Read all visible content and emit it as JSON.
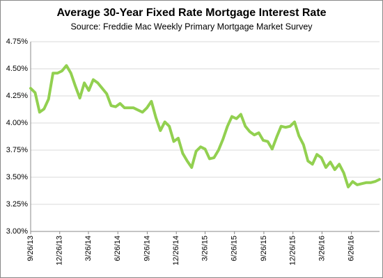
{
  "chart_data": {
    "type": "line",
    "title": "Average 30-Year Fixed Rate Mortgage Interest Rate",
    "subtitle": "Source: Freddie Mac Weekly Primary Mortgage Market Survey",
    "x": [
      "9/26/13",
      "10/10/13",
      "10/24/13",
      "11/7/13",
      "11/21/13",
      "12/5/13",
      "12/19/13",
      "1/2/14",
      "1/16/14",
      "1/30/14",
      "2/13/14",
      "2/27/14",
      "3/13/14",
      "3/27/14",
      "4/10/14",
      "4/24/14",
      "5/8/14",
      "5/22/14",
      "6/5/14",
      "6/19/14",
      "7/3/14",
      "7/17/14",
      "7/31/14",
      "8/14/14",
      "8/28/14",
      "9/11/14",
      "9/25/14",
      "10/9/14",
      "10/23/14",
      "11/6/14",
      "11/20/14",
      "12/4/14",
      "12/18/14",
      "1/1/15",
      "1/15/15",
      "1/29/15",
      "2/12/15",
      "2/26/15",
      "3/12/15",
      "3/26/15",
      "4/9/15",
      "4/23/15",
      "5/7/15",
      "5/21/15",
      "6/4/15",
      "6/18/15",
      "7/2/15",
      "7/16/15",
      "7/30/15",
      "8/13/15",
      "8/27/15",
      "9/10/15",
      "9/24/15",
      "10/8/15",
      "10/22/15",
      "11/5/15",
      "11/19/15",
      "12/3/15",
      "12/17/15",
      "12/31/15",
      "1/14/16",
      "1/28/16",
      "2/11/16",
      "2/25/16",
      "3/10/16",
      "3/24/16",
      "4/7/16",
      "4/21/16",
      "5/5/16",
      "5/19/16",
      "6/2/16",
      "6/16/16",
      "6/30/16",
      "7/14/16",
      "7/28/16",
      "8/11/16",
      "8/25/16",
      "9/8/16",
      "9/22/16"
    ],
    "series": [
      {
        "name": "30-Year Fixed Rate",
        "color": "#92d050",
        "values": [
          4.32,
          4.28,
          4.1,
          4.13,
          4.22,
          4.46,
          4.46,
          4.48,
          4.53,
          4.46,
          4.34,
          4.23,
          4.37,
          4.3,
          4.4,
          4.37,
          4.32,
          4.27,
          4.16,
          4.15,
          4.18,
          4.14,
          4.14,
          4.14,
          4.12,
          4.1,
          4.14,
          4.2,
          4.05,
          3.93,
          4.01,
          3.97,
          3.83,
          3.86,
          3.72,
          3.65,
          3.59,
          3.74,
          3.78,
          3.76,
          3.67,
          3.68,
          3.75,
          3.85,
          3.97,
          4.06,
          4.04,
          4.08,
          3.97,
          3.92,
          3.89,
          3.91,
          3.84,
          3.83,
          3.76,
          3.87,
          3.97,
          3.96,
          3.97,
          4.01,
          3.88,
          3.8,
          3.65,
          3.62,
          3.71,
          3.68,
          3.59,
          3.64,
          3.57,
          3.62,
          3.54,
          3.41,
          3.46,
          3.43,
          3.44,
          3.45,
          3.45,
          3.46,
          3.48
        ]
      }
    ],
    "xlim": [
      "9/26/13",
      "9/22/16"
    ],
    "xticks": [
      "9/26/13",
      "12/26/13",
      "3/26/14",
      "6/26/14",
      "9/26/14",
      "12/26/14",
      "3/26/15",
      "6/26/15",
      "9/26/15",
      "12/26/15",
      "3/26/16",
      "6/26/16"
    ],
    "ylim": [
      3,
      4.75
    ],
    "yticks": [
      {
        "value": 3,
        "label": "3.00%"
      },
      {
        "value": 3.25,
        "label": "3.25%"
      },
      {
        "value": 3.5,
        "label": "3.50%"
      },
      {
        "value": 3.75,
        "label": "3.75%"
      },
      {
        "value": 4,
        "label": "4.00%"
      },
      {
        "value": 4.25,
        "label": "4.25%"
      },
      {
        "value": 4.5,
        "label": "4.50%"
      },
      {
        "value": 4.75,
        "label": "4.75%"
      }
    ],
    "grid": true
  }
}
